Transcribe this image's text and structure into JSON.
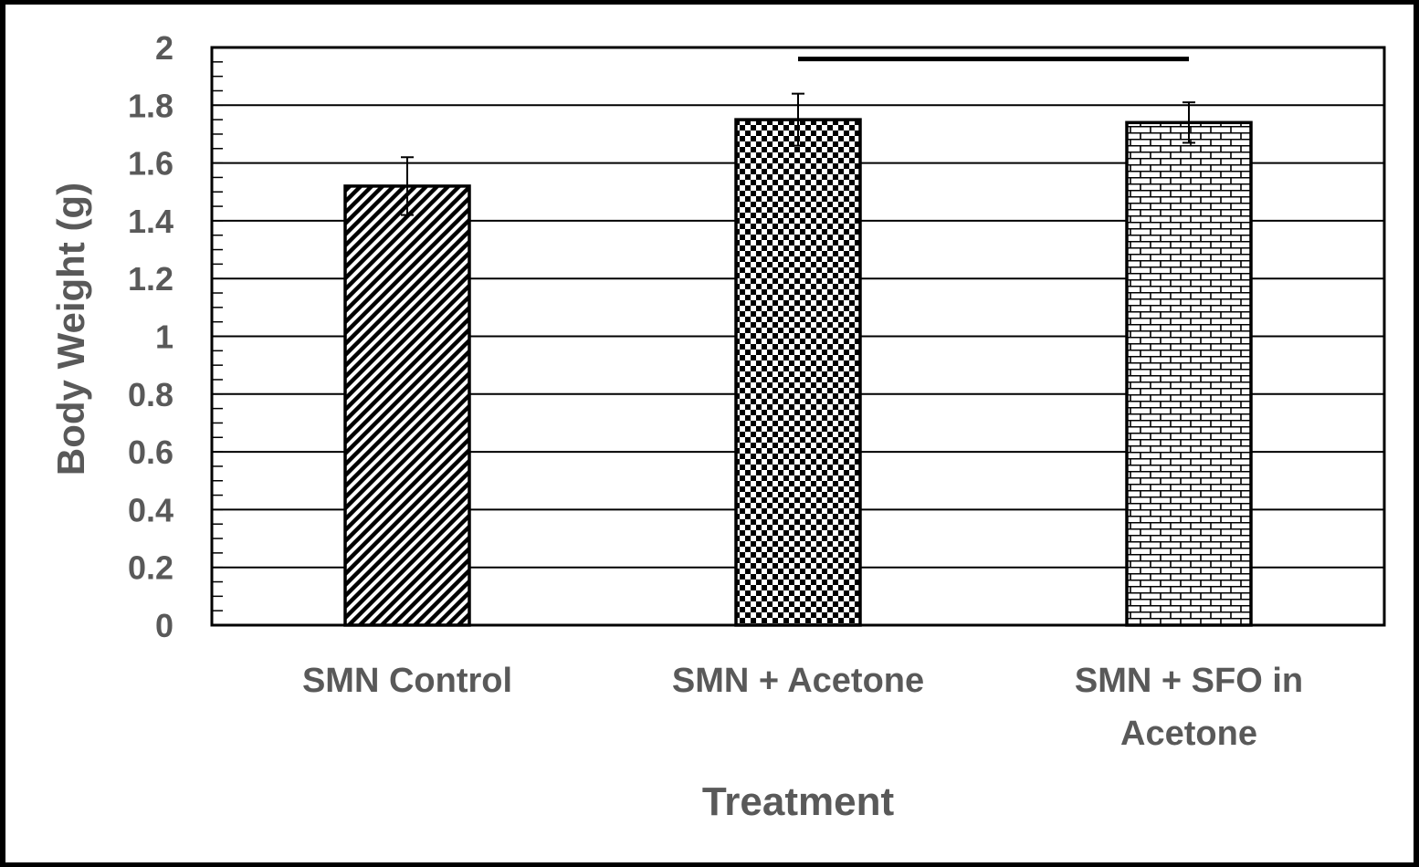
{
  "chart_data": {
    "type": "bar",
    "title": "",
    "xlabel": "Treatment",
    "ylabel": "Body Weight (g)",
    "ylim": [
      0,
      2
    ],
    "yticks": [
      "0",
      "0.2",
      "0.4",
      "0.6",
      "0.8",
      "1",
      "1.2",
      "1.4",
      "1.6",
      "1.8",
      "2"
    ],
    "yticks_values": [
      0,
      0.2,
      0.4,
      0.6,
      0.8,
      1,
      1.2,
      1.4,
      1.6,
      1.8,
      2
    ],
    "minor_tick_step": 0.05,
    "grid": true,
    "categories": [
      {
        "lines": [
          "SMN Control"
        ],
        "pattern": "diagonal-stripes"
      },
      {
        "lines": [
          "SMN + Acetone"
        ],
        "pattern": "checkerboard"
      },
      {
        "lines": [
          "SMN + SFO in",
          "Acetone"
        ],
        "pattern": "brick"
      }
    ],
    "values": [
      1.52,
      1.75,
      1.74
    ],
    "error_bars": [
      0.1,
      0.09,
      0.07
    ],
    "annotations": [
      {
        "type": "significance-bracket",
        "from_category": 1,
        "to_category": 2,
        "y": 1.96
      }
    ],
    "colors": {
      "bar_stroke": "#000000",
      "bar_fill": "#ffffff",
      "grid": "#000000",
      "text": "#595959",
      "frame": "#000000"
    }
  }
}
